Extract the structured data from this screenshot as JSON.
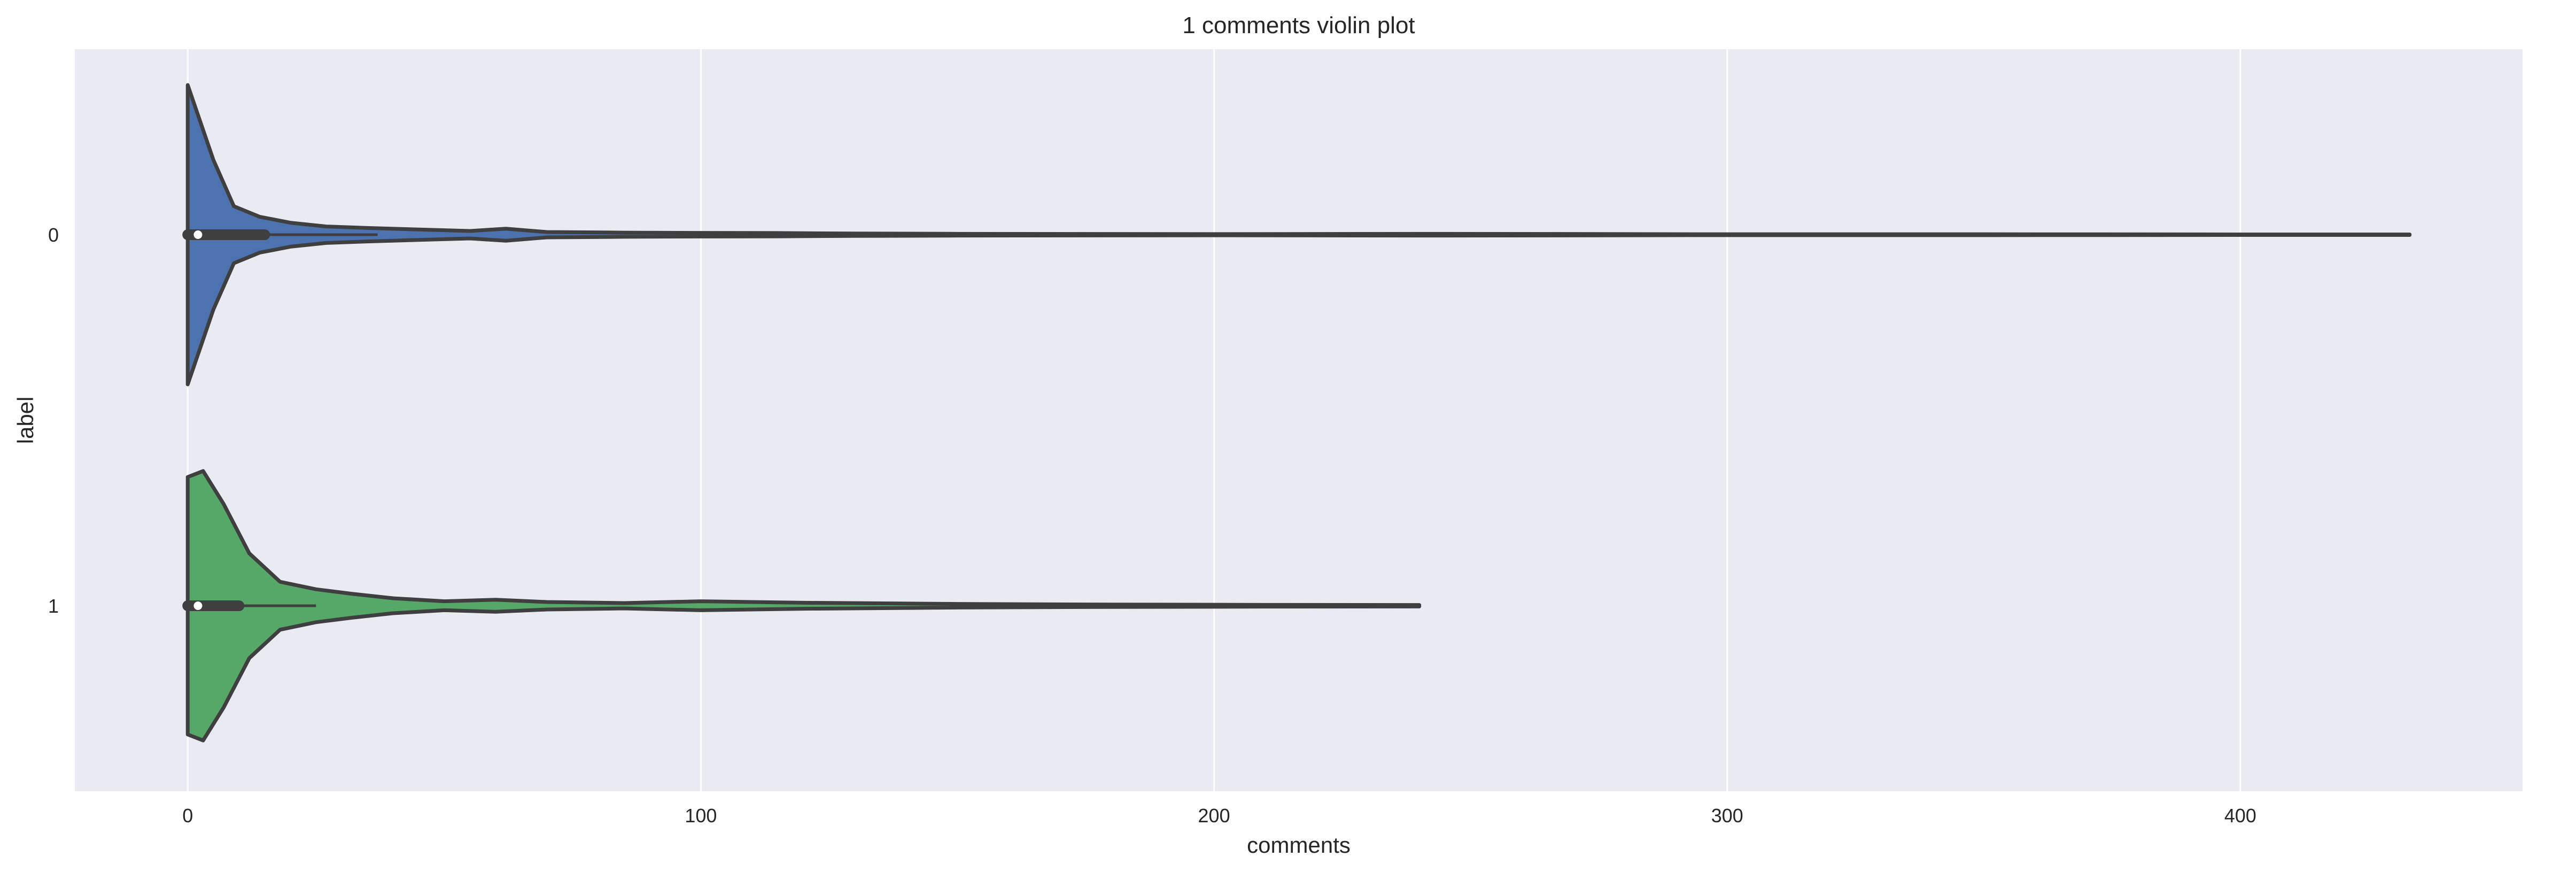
{
  "chart_data": {
    "type": "violin",
    "title": "1 comments violin plot",
    "xlabel": "comments",
    "ylabel": "label",
    "xlim": [
      -22,
      455
    ],
    "x_ticks": [
      0,
      100,
      200,
      300,
      400
    ],
    "grid": true,
    "orientation": "horizontal",
    "colors": {
      "background": "#eaeaf2",
      "grid": "#ffffff",
      "outline": "#3f3f3f"
    },
    "categories": [
      "0",
      "1"
    ],
    "series": [
      {
        "category": "0",
        "color": "#4c72b0",
        "min": 0,
        "q1": 0,
        "median": 2,
        "q3": 15,
        "whisker_high": 37,
        "max": 433,
        "density": [
          [
            0,
            1.0
          ],
          [
            2,
            0.8
          ],
          [
            5,
            0.5
          ],
          [
            9,
            0.19
          ],
          [
            14,
            0.12
          ],
          [
            20,
            0.08
          ],
          [
            27,
            0.055
          ],
          [
            35,
            0.045
          ],
          [
            45,
            0.035
          ],
          [
            55,
            0.025
          ],
          [
            62,
            0.04
          ],
          [
            70,
            0.018
          ],
          [
            85,
            0.014
          ],
          [
            100,
            0.012
          ],
          [
            115,
            0.011
          ],
          [
            130,
            0.008
          ],
          [
            150,
            0.006
          ],
          [
            200,
            0.004
          ],
          [
            245,
            0.006
          ],
          [
            300,
            0.003
          ],
          [
            350,
            0.003
          ],
          [
            400,
            0.002
          ],
          [
            433,
            0.002
          ]
        ]
      },
      {
        "category": "1",
        "color": "#55a868",
        "min": 0,
        "q1": 0,
        "median": 2,
        "q3": 10,
        "whisker_high": 25,
        "max": 240,
        "density": [
          [
            0,
            0.86
          ],
          [
            3,
            0.9
          ],
          [
            7,
            0.68
          ],
          [
            12,
            0.35
          ],
          [
            18,
            0.16
          ],
          [
            25,
            0.11
          ],
          [
            32,
            0.08
          ],
          [
            40,
            0.05
          ],
          [
            50,
            0.03
          ],
          [
            60,
            0.04
          ],
          [
            70,
            0.025
          ],
          [
            85,
            0.018
          ],
          [
            100,
            0.03
          ],
          [
            120,
            0.02
          ],
          [
            150,
            0.012
          ],
          [
            180,
            0.008
          ],
          [
            210,
            0.006
          ],
          [
            240,
            0.005
          ]
        ]
      }
    ]
  }
}
